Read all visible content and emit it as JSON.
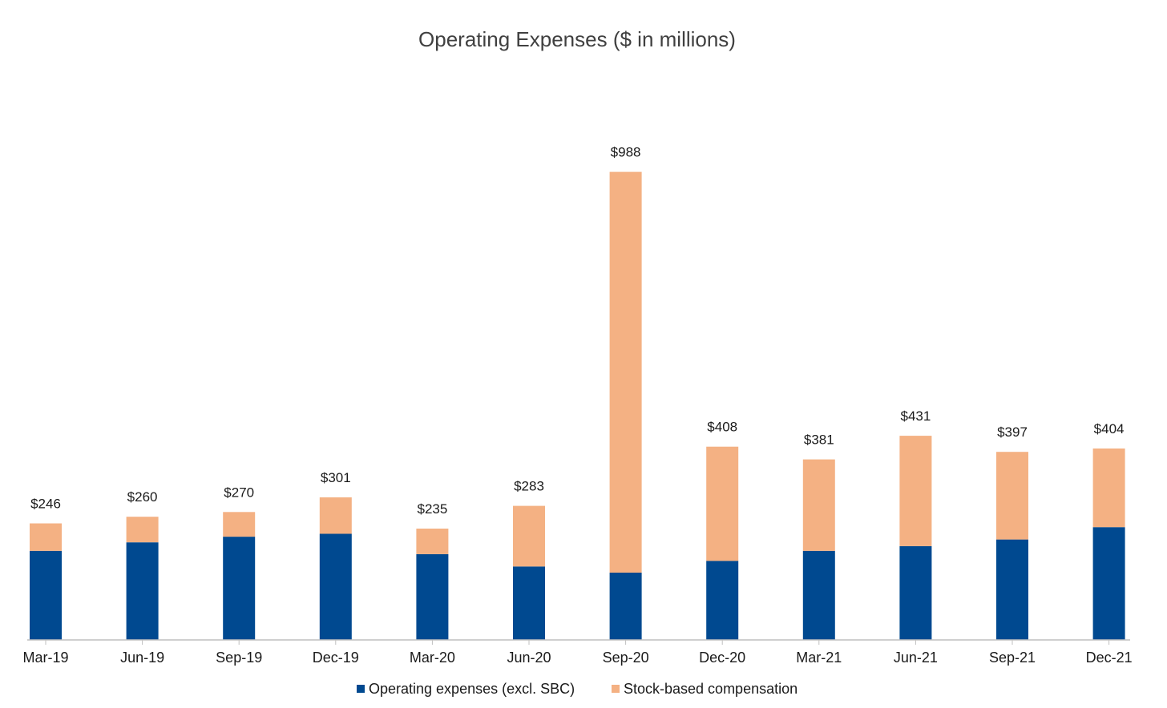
{
  "chart_data": {
    "type": "bar",
    "stacked": true,
    "title": "Operating Expenses ($ in millions)",
    "xlabel": "",
    "ylabel": "",
    "ylim": [
      0,
      1000
    ],
    "grid": false,
    "legend_position": "bottom",
    "categories": [
      "Mar-19",
      "Jun-19",
      "Sep-19",
      "Dec-19",
      "Mar-20",
      "Jun-20",
      "Sep-20",
      "Dec-20",
      "Mar-21",
      "Jun-21",
      "Sep-21",
      "Dec-21"
    ],
    "totals": [
      246,
      260,
      270,
      301,
      235,
      283,
      988,
      408,
      381,
      431,
      397,
      404
    ],
    "total_labels": [
      "$246",
      "$260",
      "$270",
      "$301",
      "$235",
      "$283",
      "$988",
      "$408",
      "$381",
      "$431",
      "$397",
      "$404"
    ],
    "series": [
      {
        "name": "Operating expenses (excl. SBC)",
        "color": "#004990",
        "values": [
          188,
          206,
          218,
          224,
          181,
          155,
          142,
          167,
          188,
          198,
          212,
          238
        ]
      },
      {
        "name": "Stock-based compensation",
        "color": "#f4b183",
        "values": [
          58,
          54,
          52,
          77,
          54,
          128,
          846,
          241,
          193,
          233,
          185,
          166
        ]
      }
    ]
  }
}
